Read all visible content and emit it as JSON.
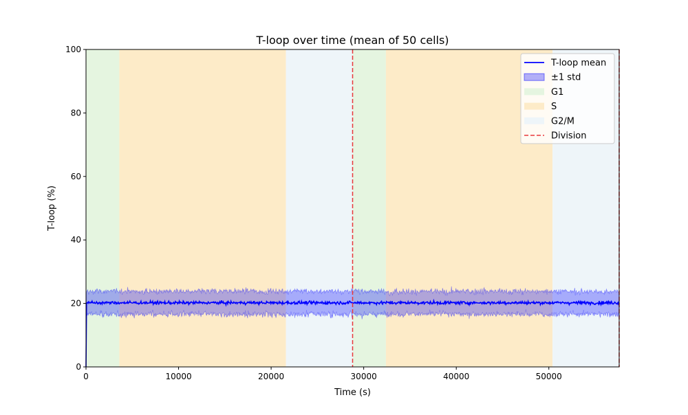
{
  "chart_data": {
    "type": "line",
    "title": "T-loop over time (mean of 50 cells)",
    "xlabel": "Time (s)",
    "ylabel": "T-loop (%)",
    "xlim": [
      0,
      57600
    ],
    "ylim": [
      0,
      100
    ],
    "xticks": [
      0,
      10000,
      20000,
      30000,
      40000,
      50000
    ],
    "yticks": [
      0,
      20,
      40,
      60,
      80,
      100
    ],
    "grid": false,
    "legend_position": "upper right",
    "series": [
      {
        "name": "T-loop mean",
        "kind": "line",
        "color": "#0000ff",
        "start": 0,
        "level": 20.2,
        "noise": 0.6,
        "x_step": 60
      },
      {
        "name": "±1 std",
        "kind": "band",
        "color": "#0000ff",
        "lower": 16.6,
        "upper": 23.8,
        "noise": 1.0
      }
    ],
    "phase_regions": [
      {
        "name": "G1",
        "color": "#e5f5e0",
        "start": 0,
        "end": 3600
      },
      {
        "name": "S",
        "color": "#fdebc8",
        "start": 3600,
        "end": 21600
      },
      {
        "name": "G2/M",
        "color": "#eef5f9",
        "start": 21600,
        "end": 28800
      },
      {
        "name": "G1",
        "color": "#e5f5e0",
        "start": 28800,
        "end": 32400
      },
      {
        "name": "S",
        "color": "#fdebc8",
        "start": 32400,
        "end": 50400
      },
      {
        "name": "G2/M",
        "color": "#eef5f9",
        "start": 50400,
        "end": 57600
      }
    ],
    "division_lines": [
      {
        "name": "Division",
        "x": 28800,
        "color": "#e8373b"
      },
      {
        "name": "Division",
        "x": 57600,
        "color": "#e8373b"
      }
    ],
    "legend_entries": [
      {
        "label": "T-loop mean",
        "style": "line",
        "color": "#0000ff"
      },
      {
        "label": "±1 std",
        "style": "patch",
        "color": "#0000ff"
      },
      {
        "label": "G1",
        "style": "patch",
        "color": "#e5f5e0"
      },
      {
        "label": "S",
        "style": "patch",
        "color": "#fdebc8"
      },
      {
        "label": "G2/M",
        "style": "patch",
        "color": "#eef5f9"
      },
      {
        "label": "Division",
        "style": "dashed",
        "color": "#e8373b"
      }
    ]
  }
}
